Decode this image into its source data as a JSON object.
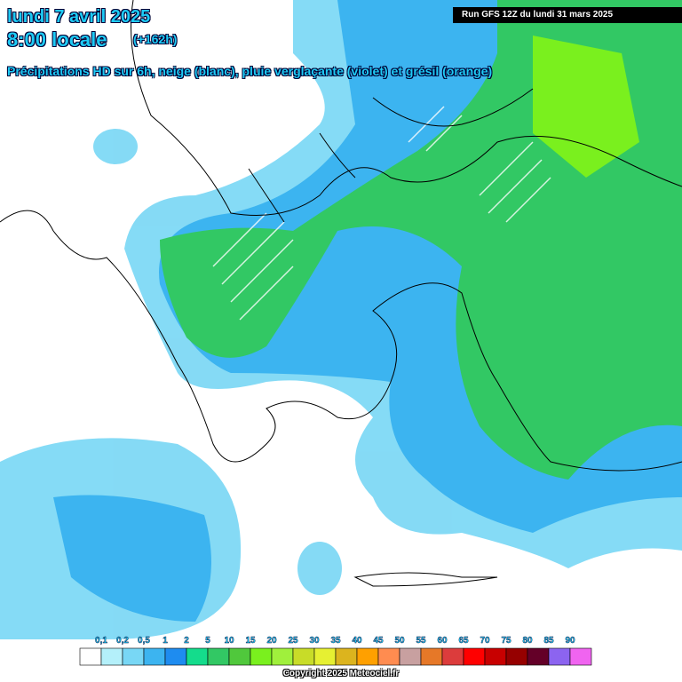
{
  "header": {
    "title": "lundi 7 avril 2025",
    "time": "8:00 locale",
    "lead": "(+162h)",
    "subtitle": "Précipitations HD sur 6h, neige (blanc), pluie verglaçante (violet) et grésil (orange)",
    "run": "Run GFS 12Z du lundi 31 mars 2025"
  },
  "legend": {
    "labels": [
      "0,1",
      "0,2",
      "0,5",
      "1",
      "2",
      "5",
      "10",
      "15",
      "20",
      "25",
      "30",
      "35",
      "40",
      "45",
      "50",
      "55",
      "60",
      "65",
      "70",
      "75",
      "80",
      "85",
      "90"
    ],
    "colors": [
      "#ffffff",
      "#b4f0fa",
      "#78d7f5",
      "#3cb4f0",
      "#1e8cf0",
      "#14dc8c",
      "#32c864",
      "#50c83c",
      "#7af01e",
      "#a0f03c",
      "#c8dc28",
      "#e6f032",
      "#dcb41e",
      "#ffa000",
      "#ff8c50",
      "#c8a0a0",
      "#e67828",
      "#dc3c3c",
      "#ff0000",
      "#c80000",
      "#960000",
      "#640028",
      "#8c64f0",
      "#f064f0"
    ]
  },
  "footer": {
    "copyright": "Copyright 2025 Meteociel.fr"
  }
}
